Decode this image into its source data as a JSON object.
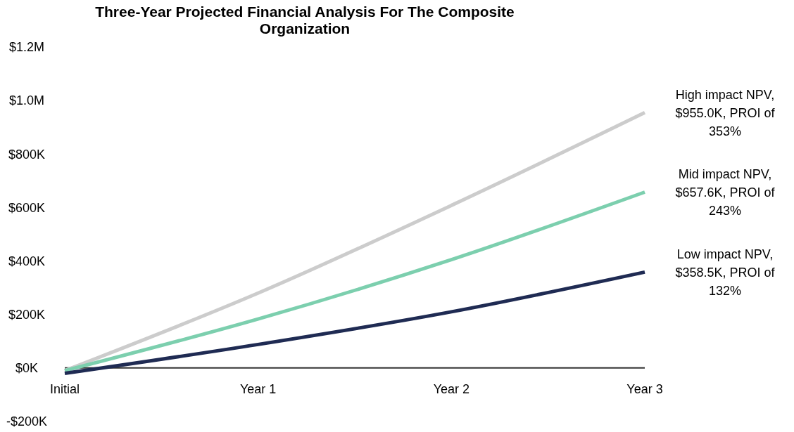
{
  "chart_data": {
    "type": "line",
    "title": "Three-Year Projected Financial Analysis For The Composite Organization",
    "categories": [
      "Initial",
      "Year 1",
      "Year 2",
      "Year 3"
    ],
    "series": [
      {
        "color": "#cccccc",
        "values": [
          -10000,
          280000,
          608000,
          955000
        ]
      },
      {
        "color": "#7ccfae",
        "values": [
          -10000,
          183000,
          405000,
          657600
        ]
      },
      {
        "color": "#1f2b53",
        "values": [
          -20000,
          88000,
          210000,
          358500
        ]
      }
    ],
    "ylim": [
      -200000,
      1200000
    ],
    "yticks": [
      {
        "value": -200000,
        "label": "-$200K"
      },
      {
        "value": 0,
        "label": "$0K"
      },
      {
        "value": 200000,
        "label": "$200K"
      },
      {
        "value": 400000,
        "label": "$400K"
      },
      {
        "value": 600000,
        "label": "$600K"
      },
      {
        "value": 800000,
        "label": "$800K"
      },
      {
        "value": 1000000,
        "label": "$1.0M"
      },
      {
        "value": 1200000,
        "label": "$1.2M"
      }
    ],
    "grid": false,
    "marker": "none",
    "line_style": "solid",
    "annotations": [
      {
        "text": "High impact NPV, $955.0K, PROI of 353%",
        "x": "Year 3",
        "y": 955000
      },
      {
        "text": "Mid impact NPV, $657.6K, PROI of 243%",
        "x": "Year 3",
        "y": 657600
      },
      {
        "text": "Low impact NPV, $358.5K, PROI of 132%",
        "x": "Year 3",
        "y": 358500
      }
    ]
  }
}
